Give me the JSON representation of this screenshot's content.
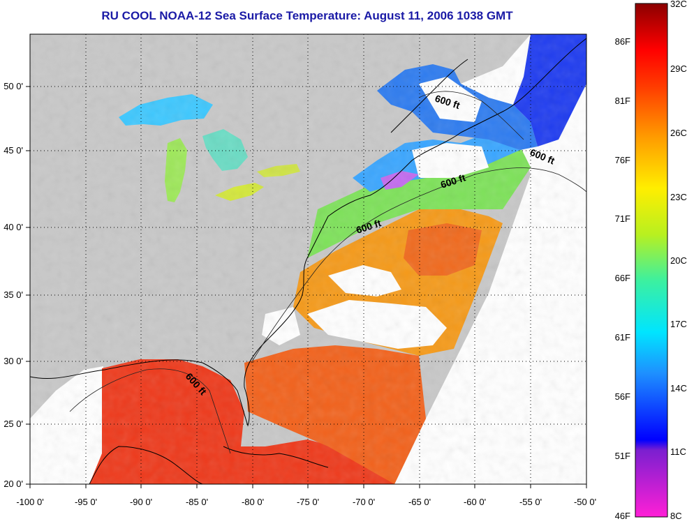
{
  "title": "RU COOL  NOAA-12  Sea Surface Temperature:  August 11, 2006 1038 GMT",
  "map": {
    "lon_labels": [
      "-100 0'",
      "-95 0'",
      "-90 0'",
      "-85 0'",
      "-80 0'",
      "-75 0'",
      "-70 0'",
      "-65 0'",
      "-60 0'",
      "-55 0'",
      "-50 0'"
    ],
    "lat_labels": [
      "50 0'",
      "45 0'",
      "40 0'",
      "35 0'",
      "30 0'",
      "25 0'",
      "20 0'"
    ],
    "contour_labels": [
      "600 ft",
      "600 ft",
      "600 ft",
      "600 ft",
      "600 ft"
    ],
    "colors": {
      "land": "#c8c8c8",
      "cloud": "#ffffff",
      "warm": "#ee3a1c",
      "orange": "#f59a1a",
      "green": "#7ee25a",
      "blue": "#2e7cf0",
      "magenta": "#e23bd8"
    }
  },
  "colorbar": {
    "fahrenheit_labels": [
      "86F",
      "81F",
      "76F",
      "71F",
      "66F",
      "61F",
      "56F",
      "51F",
      "46F"
    ],
    "celsius_labels": [
      "32C",
      "29C",
      "26C",
      "23C",
      "20C",
      "17C",
      "14C",
      "11C",
      "8C"
    ]
  }
}
